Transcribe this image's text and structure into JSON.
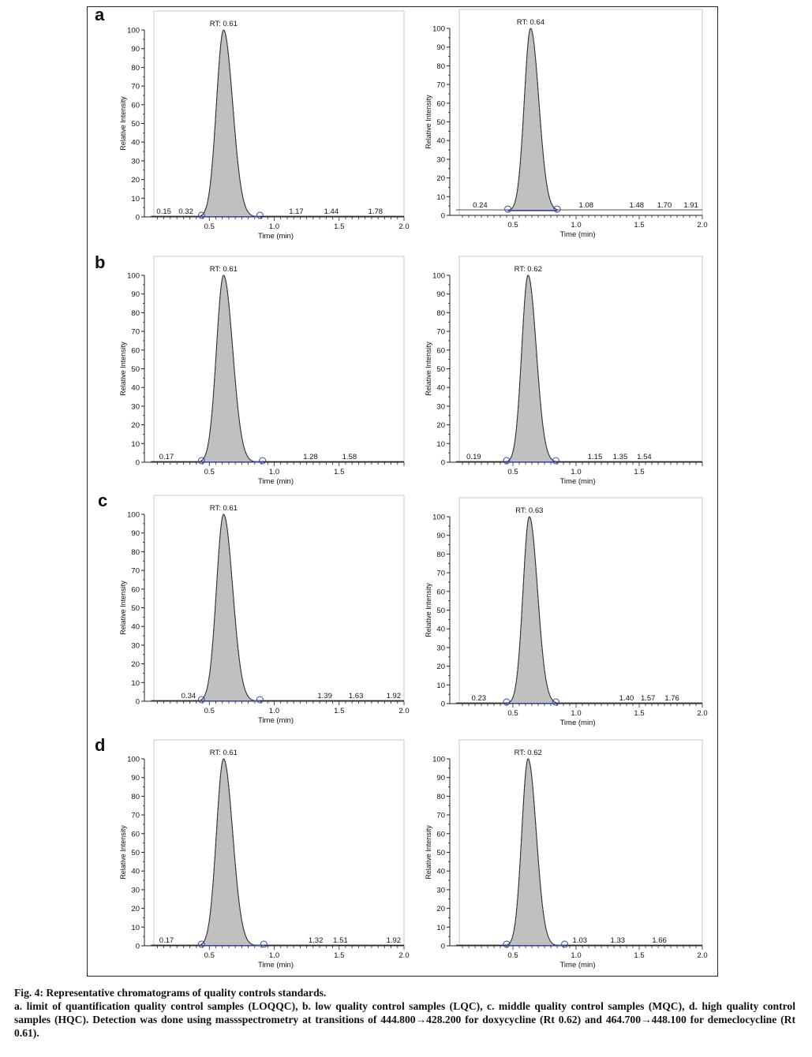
{
  "panels": [
    {
      "letter": "a"
    },
    {
      "letter": "b"
    },
    {
      "letter": "c"
    },
    {
      "letter": "d"
    }
  ],
  "caption": {
    "title": "Fig. 4: Representative chromatograms of quality controls standards.",
    "text": "a. limit of quantification quality control samples (LOQQC), b. low quality control samples (LQC), c. middle quality control samples (MQC), d. high quality control samples (HQC). Detection was done using massspectrometry at transitions of 444.800→428.200 for doxycycline (Rt 0.62) and 464.700→448.100 for demeclocycline (Rt 0.61)."
  },
  "colors": {
    "peak_fill": "#c0c0c0",
    "peak_line": "#333333",
    "baseline": "#3344bb",
    "axis": "#222222"
  },
  "chart_data": [
    {
      "type": "area",
      "panel": "a",
      "position": "left",
      "title": "RT: 0.61",
      "rt": 0.61,
      "sigma_left": 0.055,
      "sigma_right": 0.07,
      "xlabel": "Time (min)",
      "ylabel": "Relative Intensity",
      "xlim": [
        0.0,
        2.0
      ],
      "ylim": [
        0,
        100
      ],
      "xticks": [
        "0.5",
        "1.0",
        "1.5",
        "2.0"
      ],
      "yticks": [
        "0",
        "10",
        "20",
        "30",
        "40",
        "50",
        "60",
        "70",
        "80",
        "90",
        "100"
      ],
      "peak_labels": [
        "0.15",
        "0.32",
        "1.17",
        "1.44",
        "1.78"
      ],
      "peak_label_x": [
        0.15,
        0.32,
        1.17,
        1.44,
        1.78
      ],
      "integration_markers": [
        0.44,
        0.89
      ],
      "baseline_y": 0
    },
    {
      "type": "area",
      "panel": "a",
      "position": "right",
      "title": "RT: 0.64",
      "rt": 0.64,
      "sigma_left": 0.05,
      "sigma_right": 0.065,
      "xlabel": "Time (min)",
      "ylabel": "Relative Intensity",
      "xlim": [
        0.0,
        2.0
      ],
      "ylim": [
        0,
        100
      ],
      "xticks": [
        "0.5",
        "1.0",
        "1.5",
        "2.0"
      ],
      "yticks": [
        "0",
        "10",
        "20",
        "30",
        "40",
        "50",
        "60",
        "70",
        "80",
        "90",
        "100"
      ],
      "peak_labels": [
        "0.24",
        "1.08",
        "1.48",
        "1.70",
        "1.91"
      ],
      "peak_label_x": [
        0.24,
        1.08,
        1.48,
        1.7,
        1.91
      ],
      "integration_markers": [
        0.46,
        0.85
      ],
      "baseline_y": 2.5
    },
    {
      "type": "area",
      "panel": "b",
      "position": "left",
      "title": "RT: 0.61",
      "rt": 0.61,
      "sigma_left": 0.055,
      "sigma_right": 0.07,
      "xlabel": "Time (min)",
      "ylabel": "Relative Intensity",
      "xlim": [
        0.0,
        2.0
      ],
      "ylim": [
        0,
        100
      ],
      "xticks": [
        "0.5",
        "1.0",
        "1.5"
      ],
      "yticks": [
        "0",
        "10",
        "20",
        "30",
        "40",
        "50",
        "60",
        "70",
        "80",
        "90",
        "100"
      ],
      "peak_labels": [
        "0.17",
        "1.28",
        "1.58"
      ],
      "peak_label_x": [
        0.17,
        1.28,
        1.58
      ],
      "integration_markers": [
        0.44,
        0.91
      ],
      "baseline_y": 0
    },
    {
      "type": "area",
      "panel": "b",
      "position": "right",
      "title": "RT: 0.62",
      "rt": 0.62,
      "sigma_left": 0.05,
      "sigma_right": 0.065,
      "xlabel": "Time (min)",
      "ylabel": "Relative Intensity",
      "xlim": [
        0.0,
        2.0
      ],
      "ylim": [
        0,
        100
      ],
      "xticks": [
        "0.5",
        "1.0",
        "1.5"
      ],
      "yticks": [
        "0",
        "10",
        "20",
        "30",
        "40",
        "50",
        "60",
        "70",
        "80",
        "90",
        "100"
      ],
      "peak_labels": [
        "0.19",
        "1.15",
        "1.35",
        "1.54"
      ],
      "peak_label_x": [
        0.19,
        1.15,
        1.35,
        1.54
      ],
      "integration_markers": [
        0.45,
        0.84
      ],
      "baseline_y": 0
    },
    {
      "type": "area",
      "panel": "c",
      "position": "left",
      "title": "RT: 0.61",
      "rt": 0.61,
      "sigma_left": 0.055,
      "sigma_right": 0.07,
      "xlabel": "Time (min)",
      "ylabel": "Relative Intensity",
      "xlim": [
        0.0,
        2.0
      ],
      "ylim": [
        0,
        100
      ],
      "xticks": [
        "0.5",
        "1.0",
        "1.5",
        "2.0"
      ],
      "yticks": [
        "0",
        "10",
        "20",
        "30",
        "40",
        "50",
        "60",
        "70",
        "80",
        "90",
        "100"
      ],
      "peak_labels": [
        "0.34",
        "1.39",
        "1.63",
        "1.92"
      ],
      "peak_label_x": [
        0.34,
        1.39,
        1.63,
        1.92
      ],
      "integration_markers": [
        0.44,
        0.89
      ],
      "baseline_y": 0
    },
    {
      "type": "area",
      "panel": "c",
      "position": "right",
      "title": "RT: 0.63",
      "rt": 0.63,
      "sigma_left": 0.05,
      "sigma_right": 0.065,
      "xlabel": "Time (min)",
      "ylabel": "Relative Intensity",
      "xlim": [
        0.0,
        2.0
      ],
      "ylim": [
        0,
        100
      ],
      "xticks": [
        "0.5",
        "1.0",
        "1.5",
        "2.0"
      ],
      "yticks": [
        "0",
        "10",
        "20",
        "30",
        "40",
        "50",
        "60",
        "70",
        "80",
        "90",
        "100"
      ],
      "peak_labels": [
        "0.23",
        "1.40",
        "1.57",
        "1.76"
      ],
      "peak_label_x": [
        0.23,
        1.4,
        1.57,
        1.76
      ],
      "integration_markers": [
        0.45,
        0.84
      ],
      "baseline_y": 0
    },
    {
      "type": "area",
      "panel": "d",
      "position": "left",
      "title": "RT: 0.61",
      "rt": 0.61,
      "sigma_left": 0.055,
      "sigma_right": 0.07,
      "xlabel": "Time (min)",
      "ylabel": "Relative Intensity",
      "xlim": [
        0.0,
        2.0
      ],
      "ylim": [
        0,
        100
      ],
      "xticks": [
        "0.5",
        "1.0",
        "1.5",
        "2.0"
      ],
      "yticks": [
        "0",
        "10",
        "20",
        "30",
        "40",
        "50",
        "60",
        "70",
        "80",
        "90",
        "100"
      ],
      "peak_labels": [
        "0.17",
        "1.32",
        "1.51",
        "1.92"
      ],
      "peak_label_x": [
        0.17,
        1.32,
        1.51,
        1.92
      ],
      "integration_markers": [
        0.44,
        0.92
      ],
      "baseline_y": 0
    },
    {
      "type": "area",
      "panel": "d",
      "position": "right",
      "title": "RT: 0.62",
      "rt": 0.62,
      "sigma_left": 0.05,
      "sigma_right": 0.065,
      "xlabel": "Time (min)",
      "ylabel": "Relative Intensity",
      "xlim": [
        0.0,
        2.0
      ],
      "ylim": [
        0,
        100
      ],
      "xticks": [
        "0.5",
        "1.0",
        "1.5",
        "2.0"
      ],
      "yticks": [
        "0",
        "10",
        "20",
        "30",
        "40",
        "50",
        "60",
        "70",
        "80",
        "90",
        "100"
      ],
      "peak_labels": [
        "1.03",
        "1.33",
        "1.66"
      ],
      "peak_label_x": [
        1.03,
        1.33,
        1.66
      ],
      "integration_markers": [
        0.45,
        0.91
      ],
      "baseline_y": 0
    }
  ]
}
